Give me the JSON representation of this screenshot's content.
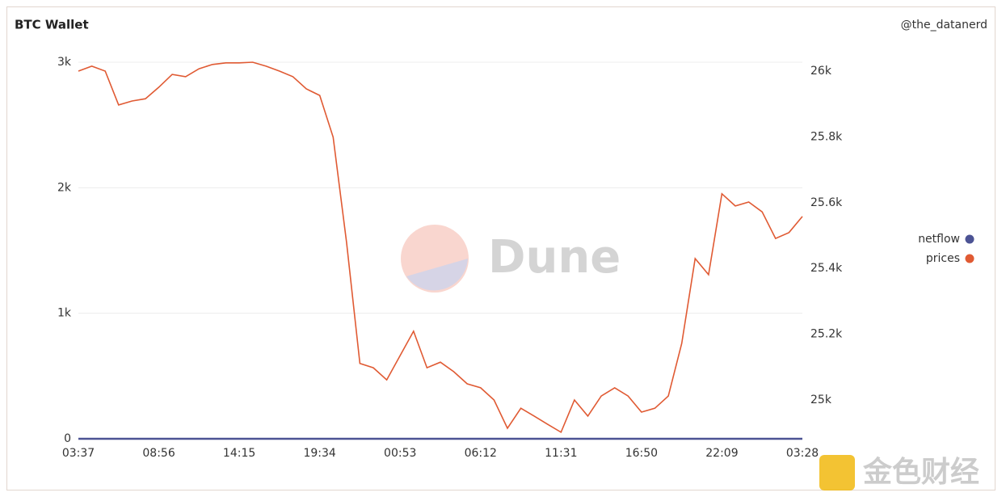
{
  "chart_data": {
    "type": "line",
    "title": "BTC Wallet",
    "author": "@the_datanerd",
    "watermark": "Dune",
    "source_watermark": "金色财经",
    "x": [
      "03:37",
      null,
      null,
      null,
      null,
      null,
      "08:56",
      null,
      null,
      null,
      null,
      null,
      "14:15",
      null,
      null,
      null,
      null,
      null,
      "19:34",
      null,
      null,
      null,
      null,
      null,
      "00:53",
      null,
      null,
      null,
      null,
      null,
      "06:12",
      null,
      null,
      null,
      null,
      null,
      "11:31",
      null,
      null,
      null,
      null,
      null,
      "16:50",
      null,
      null,
      null,
      null,
      null,
      "22:09",
      null,
      null,
      null,
      null,
      null,
      "03:28"
    ],
    "series": [
      {
        "name": "netflow",
        "color": "#4c5394",
        "axis": "y",
        "values": [
          0,
          0,
          0,
          0,
          0,
          0,
          0,
          0,
          0,
          0,
          0,
          0,
          0,
          0,
          0,
          0,
          0,
          0,
          0,
          0,
          0,
          0,
          0,
          0,
          0,
          0,
          0,
          0,
          0,
          0,
          0,
          0,
          0,
          0,
          0,
          0,
          0,
          0,
          0,
          0,
          0,
          0,
          0,
          0,
          0,
          0,
          0,
          0,
          0,
          0,
          0,
          0,
          0,
          0,
          0
        ]
      },
      {
        "name": "prices",
        "color": "#e05a33",
        "axis": "y2",
        "values": [
          26000,
          26015,
          26000,
          25897,
          25909,
          25916,
          25951,
          25990,
          25983,
          26007,
          26020,
          26025,
          26025,
          26027,
          26015,
          26000,
          25983,
          25946,
          25926,
          25799,
          25479,
          25111,
          25098,
          25061,
          25135,
          25209,
          25098,
          25115,
          25086,
          25049,
          25037,
          25000,
          24914,
          24975,
          24951,
          24926,
          24902,
          25000,
          24951,
          25012,
          25037,
          25012,
          24963,
          24975,
          25012,
          25172,
          25430,
          25381,
          25627,
          25590,
          25602,
          25572,
          25491,
          25509,
          25558
        ]
      }
    ],
    "ylim": [
      0,
      3000
    ],
    "yticks": [
      0,
      {
        "value": 1000,
        "label": "1k"
      },
      {
        "value": 2000,
        "label": "2k"
      },
      {
        "value": 3000,
        "label": "3k"
      }
    ],
    "y2lim": [
      24882,
      26027
    ],
    "y2ticks": [
      {
        "value": 25000,
        "label": "25k"
      },
      {
        "value": 25200,
        "label": "25.2k"
      },
      {
        "value": 25400,
        "label": "25.4k"
      },
      {
        "value": 25600,
        "label": "25.6k"
      },
      {
        "value": 25800,
        "label": "25.8k"
      },
      {
        "value": 26000,
        "label": "26k"
      }
    ],
    "grid": true,
    "legend": "right"
  }
}
